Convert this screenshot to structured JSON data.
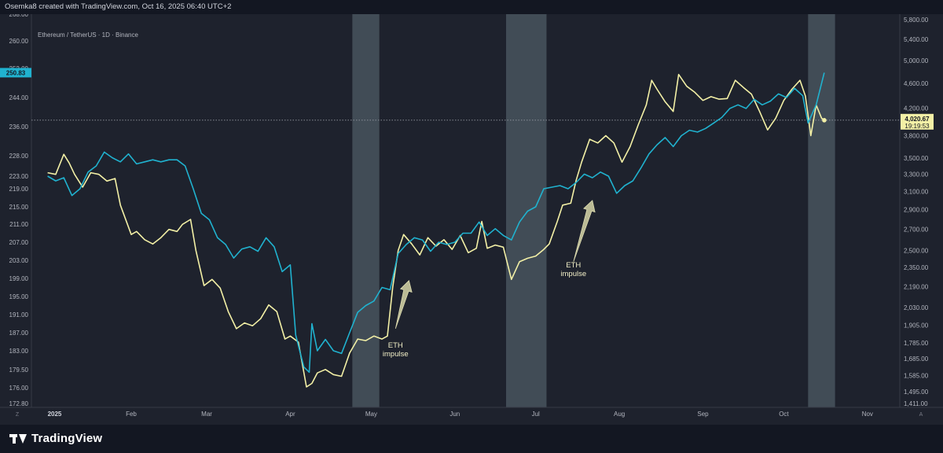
{
  "header": {
    "credit": "Osemka8 created with TradingView.com, Oct 16, 2025 06:40 UTC+2"
  },
  "footer": {
    "brand": "TradingView",
    "logo_icon": "tradingview-logo-icon"
  },
  "colors": {
    "eth": "#f3f0a6",
    "spx": "#20b2cf",
    "band": "#4b5862",
    "background": "#1e222d"
  },
  "chart_data": {
    "type": "line",
    "symbol": "Ethereum / TetherUS · 1D · Binance",
    "title": "",
    "xlabel": "",
    "ylabel": "",
    "x_ticks": [
      {
        "label": "2025",
        "date": "2025-01-01",
        "bold": true
      },
      {
        "label": "Feb",
        "date": "2025-02-01"
      },
      {
        "label": "Mar",
        "date": "2025-03-01"
      },
      {
        "label": "Apr",
        "date": "2025-04-01"
      },
      {
        "label": "May",
        "date": "2025-05-01"
      },
      {
        "label": "Jun",
        "date": "2025-06-01"
      },
      {
        "label": "Jul",
        "date": "2025-07-01"
      },
      {
        "label": "Aug",
        "date": "2025-08-01"
      },
      {
        "label": "Sep",
        "date": "2025-09-01"
      },
      {
        "label": "Oct",
        "date": "2025-10-01"
      },
      {
        "label": "Nov",
        "date": "2025-11-01"
      }
    ],
    "xlim": [
      "2024-12-26",
      "2025-11-13"
    ],
    "left_axis": {
      "ticks": [
        "176.00",
        "179.50",
        "183.00",
        "187.00",
        "191.00",
        "195.00",
        "199.00",
        "203.00",
        "207.00",
        "211.00",
        "215.00",
        "219.00",
        "223.00",
        "228.00",
        "236.00",
        "244.00",
        "252.00",
        "260.00",
        "268.00"
      ],
      "current": "250.83"
    },
    "right_axis": {
      "scale": "log",
      "ticks": [
        "1,495.00",
        "1,585.00",
        "1,685.00",
        "1,785.00",
        "1,905.00",
        "2,030.00",
        "2,190.00",
        "2,350.00",
        "2,500.00",
        "2,700.00",
        "2,900.00",
        "3,100.00",
        "3,300.00",
        "3,500.00",
        "3,800.00",
        "4,200.00",
        "4,600.00",
        "5,000.00",
        "5,400.00",
        "5,800.00"
      ],
      "current": "4,020.67",
      "countdown": "19:19:53"
    },
    "axis_corners": {
      "left_top": "268.00",
      "left_bottom": "172.80",
      "right_bottom": "1,411.00",
      "x_left_marker": "Z",
      "x_right_marker": "A"
    },
    "shaded_ranges": [
      [
        "2025-04-24",
        "2025-05-04"
      ],
      [
        "2025-06-20",
        "2025-07-05"
      ],
      [
        "2025-10-10",
        "2025-10-20"
      ]
    ],
    "annotations": [
      {
        "id": "impulse1",
        "lines": [
          "ETH",
          "impulse"
        ],
        "date": "2025-05-10",
        "value": 1755
      },
      {
        "id": "impulse2",
        "lines": [
          "ETH",
          "impulse"
        ],
        "date": "2025-07-15",
        "value": 2350
      }
    ],
    "arrows": [
      {
        "id": "arrow1",
        "from_date": "2025-05-10",
        "from_value": 1880,
        "to_date": "2025-05-15",
        "to_value": 2240
      },
      {
        "id": "arrow2",
        "from_date": "2025-07-15",
        "from_value": 2400,
        "to_date": "2025-07-22",
        "to_value": 3000
      }
    ],
    "series": [
      {
        "id": "eth",
        "axis": "right",
        "points": [
          [
            "2025-01-01",
            3320
          ],
          [
            "2025-01-04",
            3300
          ],
          [
            "2025-01-07",
            3550
          ],
          [
            "2025-01-09",
            3440
          ],
          [
            "2025-01-11",
            3300
          ],
          [
            "2025-01-14",
            3150
          ],
          [
            "2025-01-17",
            3320
          ],
          [
            "2025-01-20",
            3300
          ],
          [
            "2025-01-23",
            3220
          ],
          [
            "2025-01-26",
            3250
          ],
          [
            "2025-01-28",
            2950
          ],
          [
            "2025-02-01",
            2650
          ],
          [
            "2025-02-03",
            2680
          ],
          [
            "2025-02-06",
            2600
          ],
          [
            "2025-02-09",
            2560
          ],
          [
            "2025-02-12",
            2620
          ],
          [
            "2025-02-15",
            2700
          ],
          [
            "2025-02-18",
            2680
          ],
          [
            "2025-02-20",
            2750
          ],
          [
            "2025-02-23",
            2800
          ],
          [
            "2025-02-25",
            2500
          ],
          [
            "2025-02-28",
            2200
          ],
          [
            "2025-03-03",
            2250
          ],
          [
            "2025-03-06",
            2180
          ],
          [
            "2025-03-09",
            2000
          ],
          [
            "2025-03-12",
            1880
          ],
          [
            "2025-03-15",
            1920
          ],
          [
            "2025-03-18",
            1900
          ],
          [
            "2025-03-21",
            1950
          ],
          [
            "2025-03-24",
            2050
          ],
          [
            "2025-03-27",
            2000
          ],
          [
            "2025-03-30",
            1810
          ],
          [
            "2025-04-01",
            1830
          ],
          [
            "2025-04-04",
            1790
          ],
          [
            "2025-04-07",
            1520
          ],
          [
            "2025-04-09",
            1540
          ],
          [
            "2025-04-11",
            1600
          ],
          [
            "2025-04-14",
            1620
          ],
          [
            "2025-04-17",
            1590
          ],
          [
            "2025-04-20",
            1580
          ],
          [
            "2025-04-23",
            1720
          ],
          [
            "2025-04-26",
            1810
          ],
          [
            "2025-04-29",
            1800
          ],
          [
            "2025-05-02",
            1830
          ],
          [
            "2025-05-05",
            1810
          ],
          [
            "2025-05-07",
            1830
          ],
          [
            "2025-05-09",
            2190
          ],
          [
            "2025-05-11",
            2500
          ],
          [
            "2025-05-13",
            2650
          ],
          [
            "2025-05-16",
            2560
          ],
          [
            "2025-05-19",
            2460
          ],
          [
            "2025-05-22",
            2620
          ],
          [
            "2025-05-25",
            2540
          ],
          [
            "2025-05-28",
            2600
          ],
          [
            "2025-05-31",
            2510
          ],
          [
            "2025-06-03",
            2640
          ],
          [
            "2025-06-06",
            2480
          ],
          [
            "2025-06-09",
            2520
          ],
          [
            "2025-06-11",
            2780
          ],
          [
            "2025-06-13",
            2520
          ],
          [
            "2025-06-16",
            2550
          ],
          [
            "2025-06-19",
            2530
          ],
          [
            "2025-06-22",
            2250
          ],
          [
            "2025-06-25",
            2400
          ],
          [
            "2025-06-28",
            2430
          ],
          [
            "2025-07-01",
            2450
          ],
          [
            "2025-07-04",
            2510
          ],
          [
            "2025-07-06",
            2560
          ],
          [
            "2025-07-09",
            2780
          ],
          [
            "2025-07-11",
            2950
          ],
          [
            "2025-07-14",
            2970
          ],
          [
            "2025-07-16",
            3230
          ],
          [
            "2025-07-18",
            3450
          ],
          [
            "2025-07-21",
            3750
          ],
          [
            "2025-07-24",
            3700
          ],
          [
            "2025-07-27",
            3800
          ],
          [
            "2025-07-30",
            3700
          ],
          [
            "2025-08-02",
            3450
          ],
          [
            "2025-08-05",
            3650
          ],
          [
            "2025-08-08",
            3950
          ],
          [
            "2025-08-11",
            4250
          ],
          [
            "2025-08-13",
            4650
          ],
          [
            "2025-08-15",
            4500
          ],
          [
            "2025-08-18",
            4300
          ],
          [
            "2025-08-21",
            4150
          ],
          [
            "2025-08-23",
            4750
          ],
          [
            "2025-08-26",
            4550
          ],
          [
            "2025-08-29",
            4450
          ],
          [
            "2025-09-01",
            4320
          ],
          [
            "2025-09-04",
            4380
          ],
          [
            "2025-09-07",
            4340
          ],
          [
            "2025-09-10",
            4350
          ],
          [
            "2025-09-13",
            4650
          ],
          [
            "2025-09-16",
            4530
          ],
          [
            "2025-09-19",
            4420
          ],
          [
            "2025-09-22",
            4150
          ],
          [
            "2025-09-25",
            3880
          ],
          [
            "2025-09-28",
            4050
          ],
          [
            "2025-10-01",
            4320
          ],
          [
            "2025-10-04",
            4500
          ],
          [
            "2025-10-07",
            4650
          ],
          [
            "2025-10-09",
            4390
          ],
          [
            "2025-10-11",
            3800
          ],
          [
            "2025-10-13",
            4250
          ],
          [
            "2025-10-15",
            4050
          ],
          [
            "2025-10-16",
            4020
          ]
        ]
      },
      {
        "id": "spx",
        "axis": "left",
        "points": [
          [
            "2025-01-01",
            223.0
          ],
          [
            "2025-01-04",
            221.5
          ],
          [
            "2025-01-07",
            222.5
          ],
          [
            "2025-01-10",
            217.5
          ],
          [
            "2025-01-13",
            219.0
          ],
          [
            "2025-01-16",
            224.0
          ],
          [
            "2025-01-19",
            225.5
          ],
          [
            "2025-01-22",
            229.0
          ],
          [
            "2025-01-25",
            227.5
          ],
          [
            "2025-01-28",
            226.5
          ],
          [
            "2025-01-31",
            228.5
          ],
          [
            "2025-02-03",
            226.0
          ],
          [
            "2025-02-06",
            226.5
          ],
          [
            "2025-02-09",
            227.0
          ],
          [
            "2025-02-12",
            226.5
          ],
          [
            "2025-02-15",
            227.0
          ],
          [
            "2025-02-18",
            227.0
          ],
          [
            "2025-02-21",
            225.5
          ],
          [
            "2025-02-24",
            219.0
          ],
          [
            "2025-02-27",
            213.5
          ],
          [
            "2025-03-02",
            212.0
          ],
          [
            "2025-03-05",
            208.0
          ],
          [
            "2025-03-08",
            206.5
          ],
          [
            "2025-03-11",
            203.5
          ],
          [
            "2025-03-14",
            205.5
          ],
          [
            "2025-03-17",
            206.0
          ],
          [
            "2025-03-20",
            205.0
          ],
          [
            "2025-03-23",
            208.0
          ],
          [
            "2025-03-26",
            206.0
          ],
          [
            "2025-03-29",
            200.5
          ],
          [
            "2025-04-01",
            202.0
          ],
          [
            "2025-04-03",
            186.5
          ],
          [
            "2025-04-06",
            180.0
          ],
          [
            "2025-04-08",
            179.0
          ],
          [
            "2025-04-09",
            189.0
          ],
          [
            "2025-04-11",
            183.0
          ],
          [
            "2025-04-14",
            185.5
          ],
          [
            "2025-04-17",
            183.0
          ],
          [
            "2025-04-20",
            182.5
          ],
          [
            "2025-04-23",
            187.0
          ],
          [
            "2025-04-26",
            191.5
          ],
          [
            "2025-04-29",
            193.0
          ],
          [
            "2025-05-02",
            194.0
          ],
          [
            "2025-05-05",
            197.0
          ],
          [
            "2025-05-08",
            196.5
          ],
          [
            "2025-05-11",
            204.5
          ],
          [
            "2025-05-14",
            206.5
          ],
          [
            "2025-05-17",
            208.0
          ],
          [
            "2025-05-20",
            207.5
          ],
          [
            "2025-05-23",
            205.0
          ],
          [
            "2025-05-26",
            207.0
          ],
          [
            "2025-05-29",
            206.5
          ],
          [
            "2025-06-01",
            207.0
          ],
          [
            "2025-06-04",
            209.0
          ],
          [
            "2025-06-07",
            209.0
          ],
          [
            "2025-06-10",
            211.5
          ],
          [
            "2025-06-13",
            208.5
          ],
          [
            "2025-06-16",
            210.0
          ],
          [
            "2025-06-19",
            208.5
          ],
          [
            "2025-06-22",
            207.5
          ],
          [
            "2025-06-25",
            211.5
          ],
          [
            "2025-06-28",
            214.0
          ],
          [
            "2025-07-01",
            215.0
          ],
          [
            "2025-07-04",
            219.0
          ],
          [
            "2025-07-07",
            219.5
          ],
          [
            "2025-07-10",
            220.0
          ],
          [
            "2025-07-13",
            219.0
          ],
          [
            "2025-07-16",
            221.0
          ],
          [
            "2025-07-19",
            223.5
          ],
          [
            "2025-07-22",
            222.5
          ],
          [
            "2025-07-25",
            224.0
          ],
          [
            "2025-07-28",
            223.0
          ],
          [
            "2025-07-31",
            218.0
          ],
          [
            "2025-08-03",
            220.0
          ],
          [
            "2025-08-06",
            221.5
          ],
          [
            "2025-08-09",
            225.0
          ],
          [
            "2025-08-12",
            228.5
          ],
          [
            "2025-08-15",
            231.0
          ],
          [
            "2025-08-18",
            233.0
          ],
          [
            "2025-08-21",
            230.5
          ],
          [
            "2025-08-24",
            233.5
          ],
          [
            "2025-08-27",
            235.0
          ],
          [
            "2025-08-30",
            234.5
          ],
          [
            "2025-09-02",
            235.5
          ],
          [
            "2025-09-05",
            237.0
          ],
          [
            "2025-09-08",
            238.5
          ],
          [
            "2025-09-11",
            241.0
          ],
          [
            "2025-09-14",
            242.0
          ],
          [
            "2025-09-17",
            241.0
          ],
          [
            "2025-09-20",
            243.5
          ],
          [
            "2025-09-23",
            242.0
          ],
          [
            "2025-09-26",
            243.0
          ],
          [
            "2025-09-29",
            245.0
          ],
          [
            "2025-10-02",
            244.0
          ],
          [
            "2025-10-05",
            246.5
          ],
          [
            "2025-10-08",
            244.5
          ],
          [
            "2025-10-10",
            237.0
          ],
          [
            "2025-10-13",
            242.0
          ],
          [
            "2025-10-16",
            250.83
          ]
        ]
      }
    ]
  }
}
